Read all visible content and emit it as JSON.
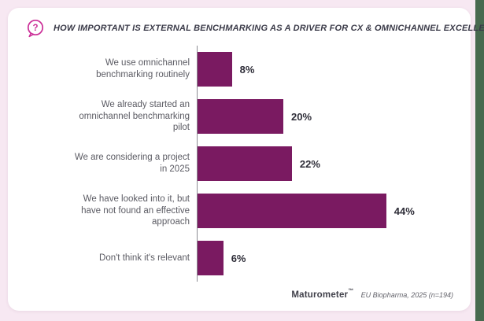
{
  "page": {
    "background_color": "#F7E8F2",
    "right_strip_color": "#486A4F",
    "card_color": "#FFFFFF"
  },
  "header": {
    "icon": "question-bubble-icon",
    "icon_glyph": "?",
    "icon_color": "#CB2D97",
    "title": "HOW IMPORTANT IS EXTERNAL BENCHMARKING AS A DRIVER FOR CX & OMNICHANNEL EXCELLENCE?"
  },
  "chart_data": {
    "type": "bar",
    "orientation": "horizontal",
    "title": "How important is external benchmarking as a driver for CX & omnichannel excellence?",
    "categories": [
      "We use omnichannel benchmarking routinely",
      "We already started an omnichannel benchmarking pilot",
      "We are considering a project in 2025",
      "We have looked into it, but have not found an effective approach",
      "Don't think it's relevant"
    ],
    "values": [
      8,
      20,
      22,
      44,
      6
    ],
    "value_labels": [
      "8%",
      "20%",
      "22%",
      "44%",
      "6%"
    ],
    "unit": "%",
    "bar_color": "#7A1A61",
    "axis_line_color": "#8C8C92",
    "xlim": [
      0,
      60
    ],
    "grid": false,
    "legend_position": "none",
    "value_label_position": "right-of-bar"
  },
  "footer": {
    "brand": "Maturometer",
    "trademark": "™",
    "note": "EU Biopharma, 2025 (n=194)"
  }
}
